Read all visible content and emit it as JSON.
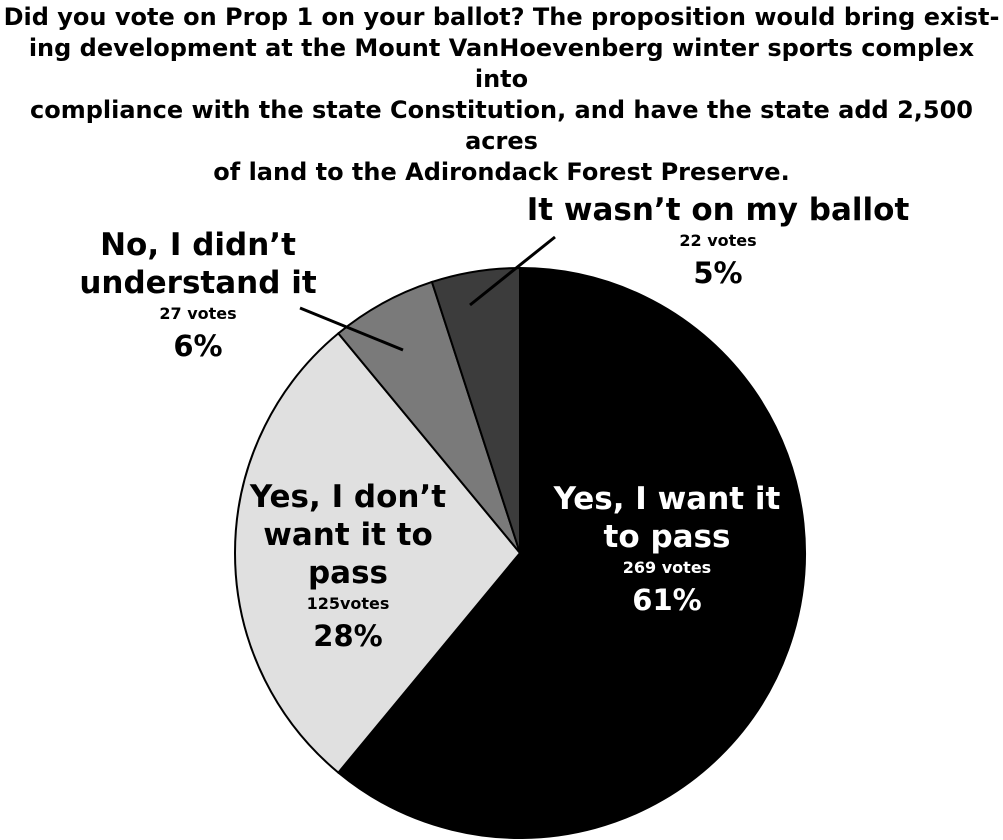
{
  "chart_data": {
    "type": "pie",
    "title": [
      "Did you vote on Prop 1 on your ballot? The proposition would bring exist-",
      "ing development at the Mount VanHoevenberg winter sports complex into",
      "compliance with the state Constitution, and have the state add 2,500 acres",
      "of land to the Adirondack Forest Preserve."
    ],
    "categories": [
      "Yes, I want it to pass",
      "Yes, I don’t want it to pass",
      "No, I didn’t understand it",
      "It wasn’t on my ballot"
    ],
    "values": [
      61,
      28,
      6,
      5
    ],
    "value_labels": [
      "61%",
      "28%",
      "6%",
      "5%"
    ],
    "vote_labels": [
      "269 votes",
      "125votes",
      "27 votes",
      "22 votes"
    ],
    "colors": [
      "#000000",
      "#e0e0e0",
      "#7a7a7a",
      "#3c3c3c"
    ]
  }
}
